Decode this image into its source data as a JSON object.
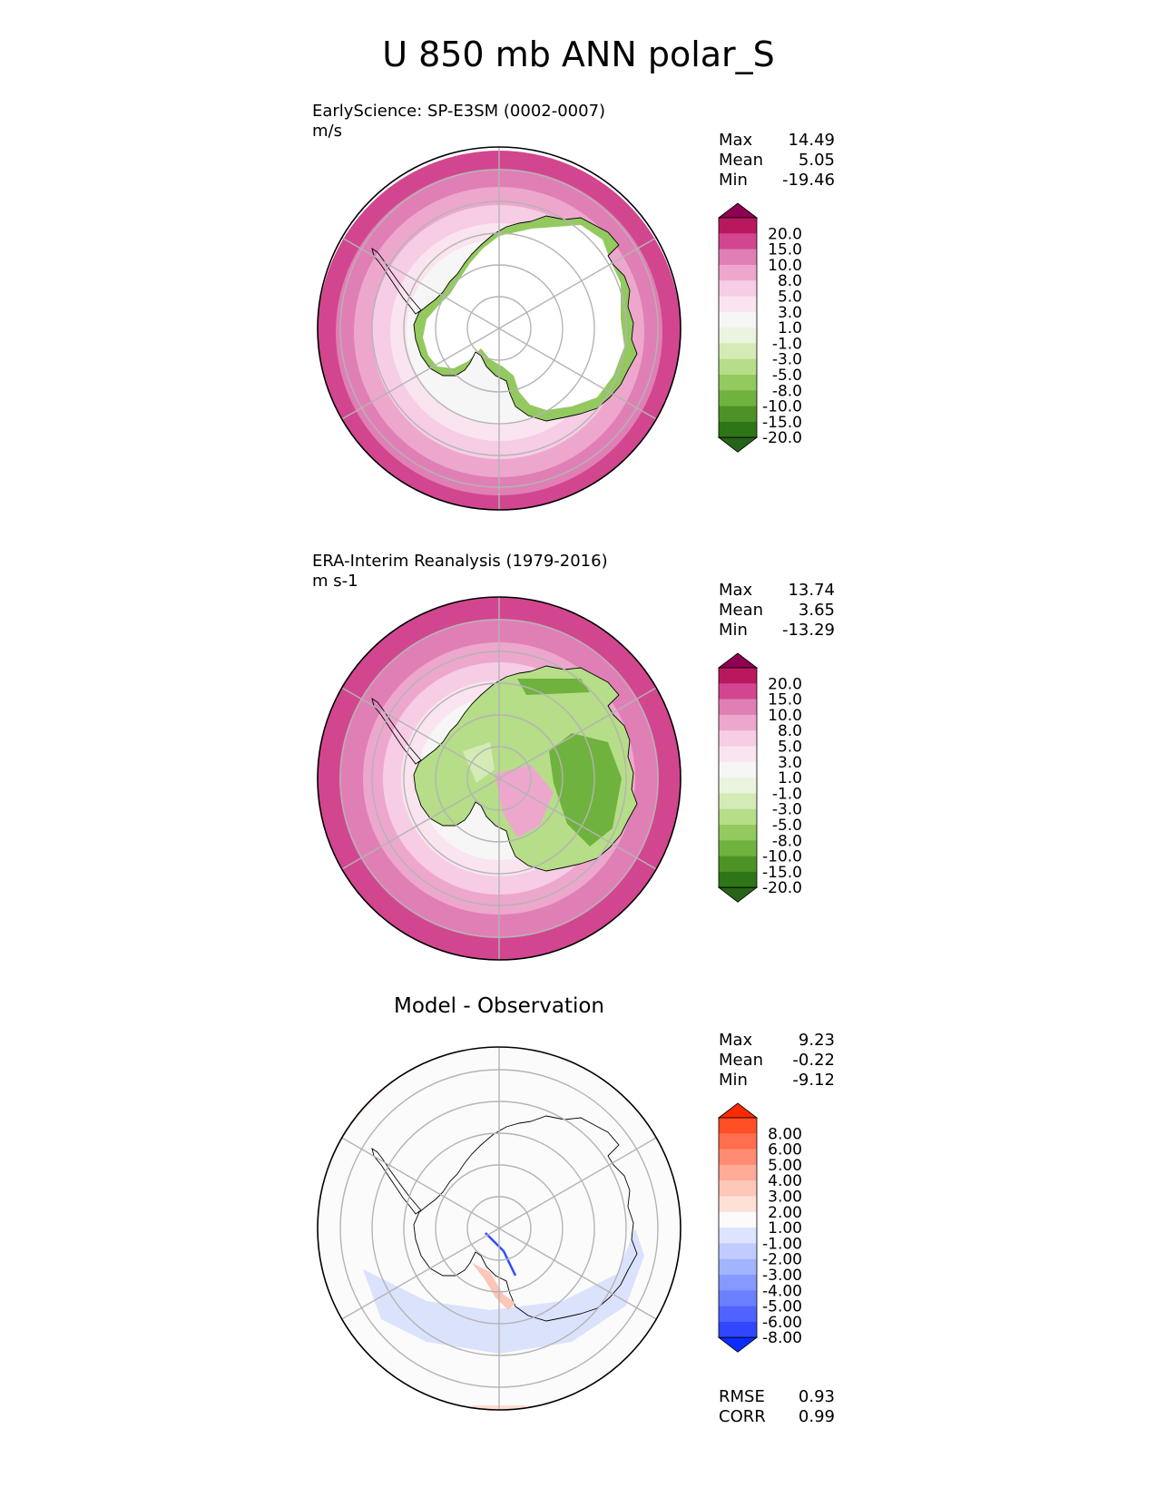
{
  "title": "U 850 mb ANN polar_S",
  "chart_data": [
    {
      "type": "heatmap",
      "subtitle": "EarlyScience: SP-E3SM (0002-0007)",
      "units": "m/s",
      "stats": [
        {
          "label": "Max",
          "value": "14.49"
        },
        {
          "label": "Mean",
          "value": "5.05"
        },
        {
          "label": "Min",
          "value": "-19.46"
        }
      ],
      "colorbar_ticks": [
        "20.0",
        "15.0",
        "10.0",
        "8.0",
        "5.0",
        "3.0",
        "1.0",
        "-1.0",
        "-3.0",
        "-5.0",
        "-8.0",
        "-10.0",
        "-15.0",
        "-20.0"
      ],
      "colorbar_colors": [
        "#8e0152",
        "#b9185f",
        "#d2468f",
        "#e07fb5",
        "#eda7cd",
        "#f6cde5",
        "#f9e4ef",
        "#f6f6f6",
        "#ebf4de",
        "#d4ebb6",
        "#b6dd88",
        "#93c95e",
        "#70b23e",
        "#4d9227",
        "#2d7516",
        "#276419"
      ],
      "field": "model"
    },
    {
      "type": "heatmap",
      "subtitle": "ERA-Interim Reanalysis (1979-2016)",
      "units": "m s-1",
      "stats": [
        {
          "label": "Max",
          "value": "13.74"
        },
        {
          "label": "Mean",
          "value": "3.65"
        },
        {
          "label": "Min",
          "value": "-13.29"
        }
      ],
      "colorbar_ticks": [
        "20.0",
        "15.0",
        "10.0",
        "8.0",
        "5.0",
        "3.0",
        "1.0",
        "-1.0",
        "-3.0",
        "-5.0",
        "-8.0",
        "-10.0",
        "-15.0",
        "-20.0"
      ],
      "colorbar_colors": [
        "#8e0152",
        "#b9185f",
        "#d2468f",
        "#e07fb5",
        "#eda7cd",
        "#f6cde5",
        "#f9e4ef",
        "#f6f6f6",
        "#ebf4de",
        "#d4ebb6",
        "#b6dd88",
        "#93c95e",
        "#70b23e",
        "#4d9227",
        "#2d7516",
        "#276419"
      ],
      "field": "obs"
    },
    {
      "type": "heatmap",
      "subtitle": "Model - Observation",
      "units": "",
      "stats": [
        {
          "label": "Max",
          "value": "9.23"
        },
        {
          "label": "Mean",
          "value": "-0.22"
        },
        {
          "label": "Min",
          "value": "-9.12"
        }
      ],
      "colorbar_ticks": [
        "8.00",
        "6.00",
        "5.00",
        "4.00",
        "3.00",
        "2.00",
        "1.00",
        "-1.00",
        "-2.00",
        "-3.00",
        "-4.00",
        "-5.00",
        "-6.00",
        "-8.00"
      ],
      "colorbar_colors": [
        "#ff2a00",
        "#ff4f25",
        "#ff6f4d",
        "#ff8c72",
        "#ffab97",
        "#ffc7b8",
        "#ffe0d7",
        "#fbfbfb",
        "#dde4ff",
        "#c0ccff",
        "#a3b4ff",
        "#8599ff",
        "#6a80ff",
        "#4e63ff",
        "#3346ff",
        "#0b2dff"
      ],
      "footer_stats": [
        {
          "label": "RMSE",
          "value": "0.93"
        },
        {
          "label": "CORR",
          "value": "0.99"
        }
      ],
      "field": "diff"
    }
  ]
}
